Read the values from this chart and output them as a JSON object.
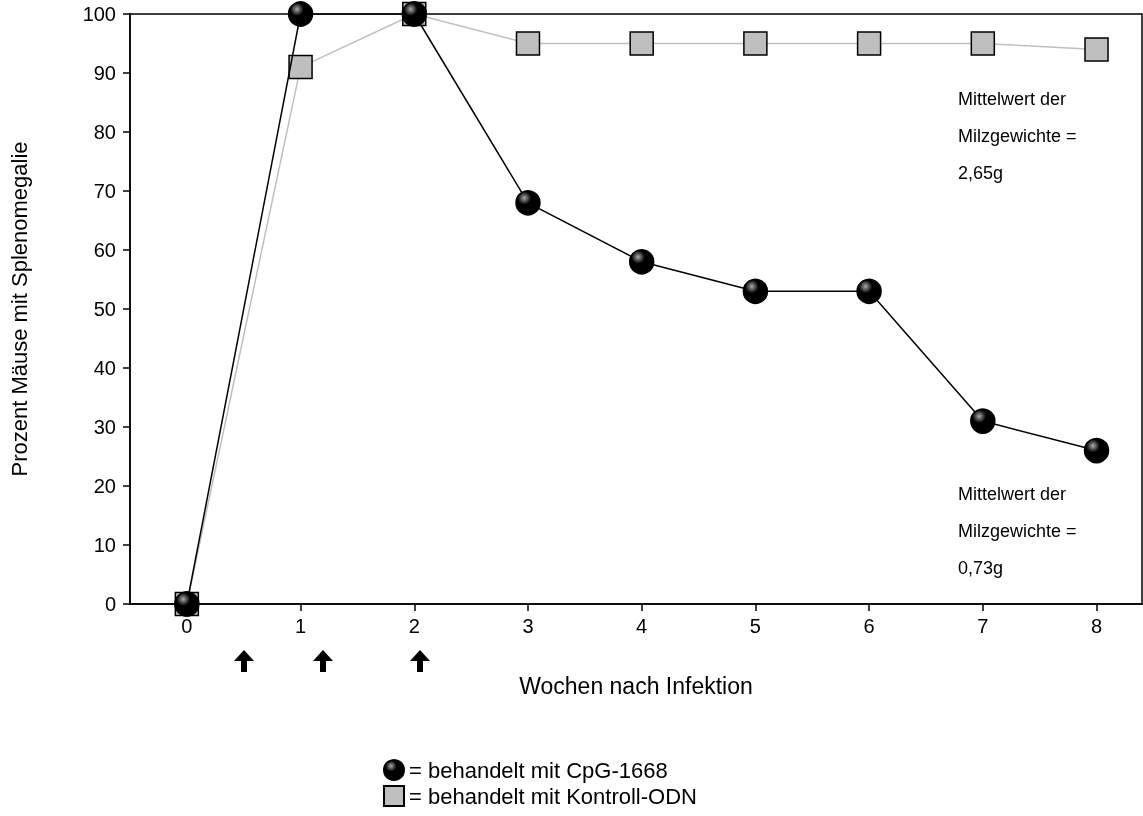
{
  "chart_data": {
    "type": "line",
    "xlabel": "Wochen nach Infektion",
    "ylabel": "Prozent Mäuse mit Splenomegalie",
    "xlim": [
      -0.5,
      8.4
    ],
    "xticks": [
      0,
      1,
      2,
      3,
      4,
      5,
      6,
      7,
      8
    ],
    "ylim": [
      0,
      100
    ],
    "yticks": [
      0,
      10,
      20,
      30,
      40,
      50,
      60,
      70,
      80,
      90,
      100
    ],
    "series": [
      {
        "name": "= behandelt mit CpG-1668",
        "color": "#000000",
        "marker": "circle",
        "x": [
          0,
          1,
          2,
          3,
          4,
          5,
          6,
          7,
          8
        ],
        "values": [
          0,
          100,
          100,
          68,
          58,
          53,
          53,
          31,
          26
        ]
      },
      {
        "name": "= behandelt mit Kontroll-ODN",
        "color": "#bfbfbf",
        "marker": "square",
        "x": [
          0,
          1,
          2,
          3,
          4,
          5,
          6,
          7,
          8
        ],
        "values": [
          0,
          91,
          100,
          95,
          95,
          95,
          95,
          95,
          94
        ]
      }
    ],
    "annotations": [
      "Mittelwert der\nMilzgewichte =\n2,65g",
      "Mittelwert der\nMilzgewichte =\n0,73g"
    ],
    "grid": false,
    "legend": "bottom",
    "line_style": "solid"
  }
}
